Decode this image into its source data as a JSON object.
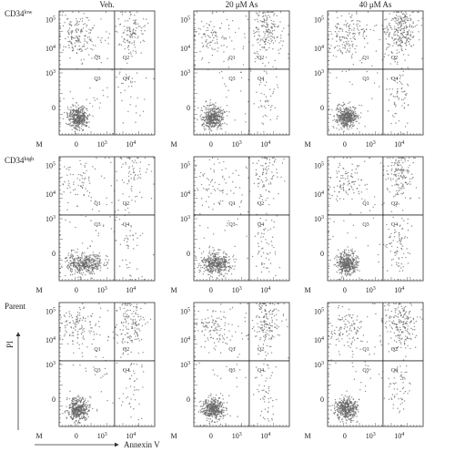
{
  "columns": [
    "Veh.",
    "20 μM As",
    "40 μM As"
  ],
  "rows": [
    {
      "label": "CD34",
      "sup": "low"
    },
    {
      "label": "CD34",
      "sup": "high"
    },
    {
      "label": "Parent"
    }
  ],
  "quadrants": [
    "Q1",
    "Q2",
    "Q3",
    "Q4"
  ],
  "corner": "M",
  "x_ticks": [
    "0",
    {
      "base": "10",
      "exp": "3"
    },
    {
      "base": "10",
      "exp": "4"
    }
  ],
  "y_ticks": [
    {
      "base": "10",
      "exp": "5"
    },
    {
      "base": "10",
      "exp": "4"
    },
    {
      "base": "10",
      "exp": "3"
    },
    "0"
  ],
  "y_axis_label": "PI",
  "x_axis_label": "Annexin V"
}
